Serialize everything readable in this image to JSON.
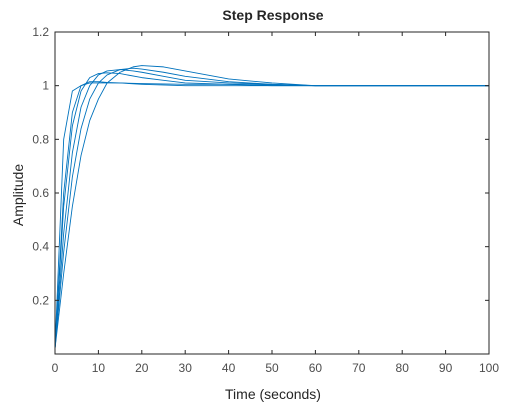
{
  "chart_data": {
    "type": "line",
    "title": "Step Response",
    "xlabel": "Time (seconds)",
    "ylabel": "Amplitude",
    "xlim": [
      0,
      100
    ],
    "ylim": [
      0,
      1.2
    ],
    "xticks": [
      0,
      10,
      20,
      30,
      40,
      50,
      60,
      70,
      80,
      90,
      100
    ],
    "yticks": [
      0.2,
      0.4,
      0.6,
      0.8,
      1,
      1.2
    ],
    "xtick_labels": [
      "0",
      "10",
      "20",
      "30",
      "40",
      "50",
      "60",
      "70",
      "80",
      "90",
      "100"
    ],
    "ytick_labels": [
      "0.2",
      "0.4",
      "0.6",
      "0.8",
      "1",
      "1.2"
    ],
    "grid": false,
    "legend": "none",
    "line_color": "#0072bd",
    "series": [
      {
        "x": [
          0,
          2,
          4,
          6,
          8,
          10,
          15,
          20,
          30,
          40,
          50,
          60,
          70,
          80,
          100
        ],
        "values": [
          0.02,
          0.8,
          0.98,
          1.0,
          1.01,
          1.01,
          1.01,
          1.005,
          1.0,
          1.0,
          1.0,
          1.0,
          1.0,
          1.0,
          1.0
        ]
      },
      {
        "x": [
          0,
          2,
          4,
          6,
          8,
          10,
          12,
          15,
          20,
          25,
          30,
          40,
          50,
          60,
          80,
          100
        ],
        "values": [
          0.02,
          0.55,
          0.85,
          0.98,
          1.03,
          1.045,
          1.048,
          1.045,
          1.03,
          1.02,
          1.01,
          1.005,
          1.0,
          1.0,
          1.0,
          1.0
        ]
      },
      {
        "x": [
          0,
          2,
          4,
          6,
          8,
          10,
          12,
          15,
          18,
          20,
          25,
          30,
          40,
          50,
          60,
          80,
          100
        ],
        "values": [
          0.02,
          0.45,
          0.75,
          0.92,
          1.0,
          1.04,
          1.055,
          1.06,
          1.055,
          1.05,
          1.035,
          1.02,
          1.01,
          1.005,
          1.0,
          1.0,
          1.0
        ]
      },
      {
        "x": [
          0,
          2,
          4,
          6,
          8,
          10,
          12,
          15,
          18,
          20,
          25,
          30,
          40,
          50,
          60,
          80,
          100
        ],
        "values": [
          0.02,
          0.38,
          0.66,
          0.84,
          0.95,
          1.01,
          1.04,
          1.06,
          1.065,
          1.062,
          1.05,
          1.035,
          1.015,
          1.005,
          1.0,
          1.0,
          1.0
        ]
      },
      {
        "x": [
          0,
          2,
          4,
          6,
          8,
          10,
          12,
          15,
          18,
          20,
          25,
          30,
          35,
          40,
          50,
          60,
          80,
          100
        ],
        "values": [
          0.02,
          0.3,
          0.55,
          0.74,
          0.87,
          0.95,
          1.01,
          1.05,
          1.07,
          1.075,
          1.07,
          1.055,
          1.04,
          1.025,
          1.01,
          1.0,
          1.0,
          1.0
        ]
      },
      {
        "x": [
          0,
          2,
          4,
          6,
          8,
          10,
          12,
          15,
          20,
          30,
          40,
          60,
          100
        ],
        "values": [
          0.02,
          0.6,
          0.9,
          1.0,
          1.015,
          1.015,
          1.012,
          1.01,
          1.008,
          1.005,
          1.005,
          1.0,
          1.0
        ]
      }
    ]
  }
}
